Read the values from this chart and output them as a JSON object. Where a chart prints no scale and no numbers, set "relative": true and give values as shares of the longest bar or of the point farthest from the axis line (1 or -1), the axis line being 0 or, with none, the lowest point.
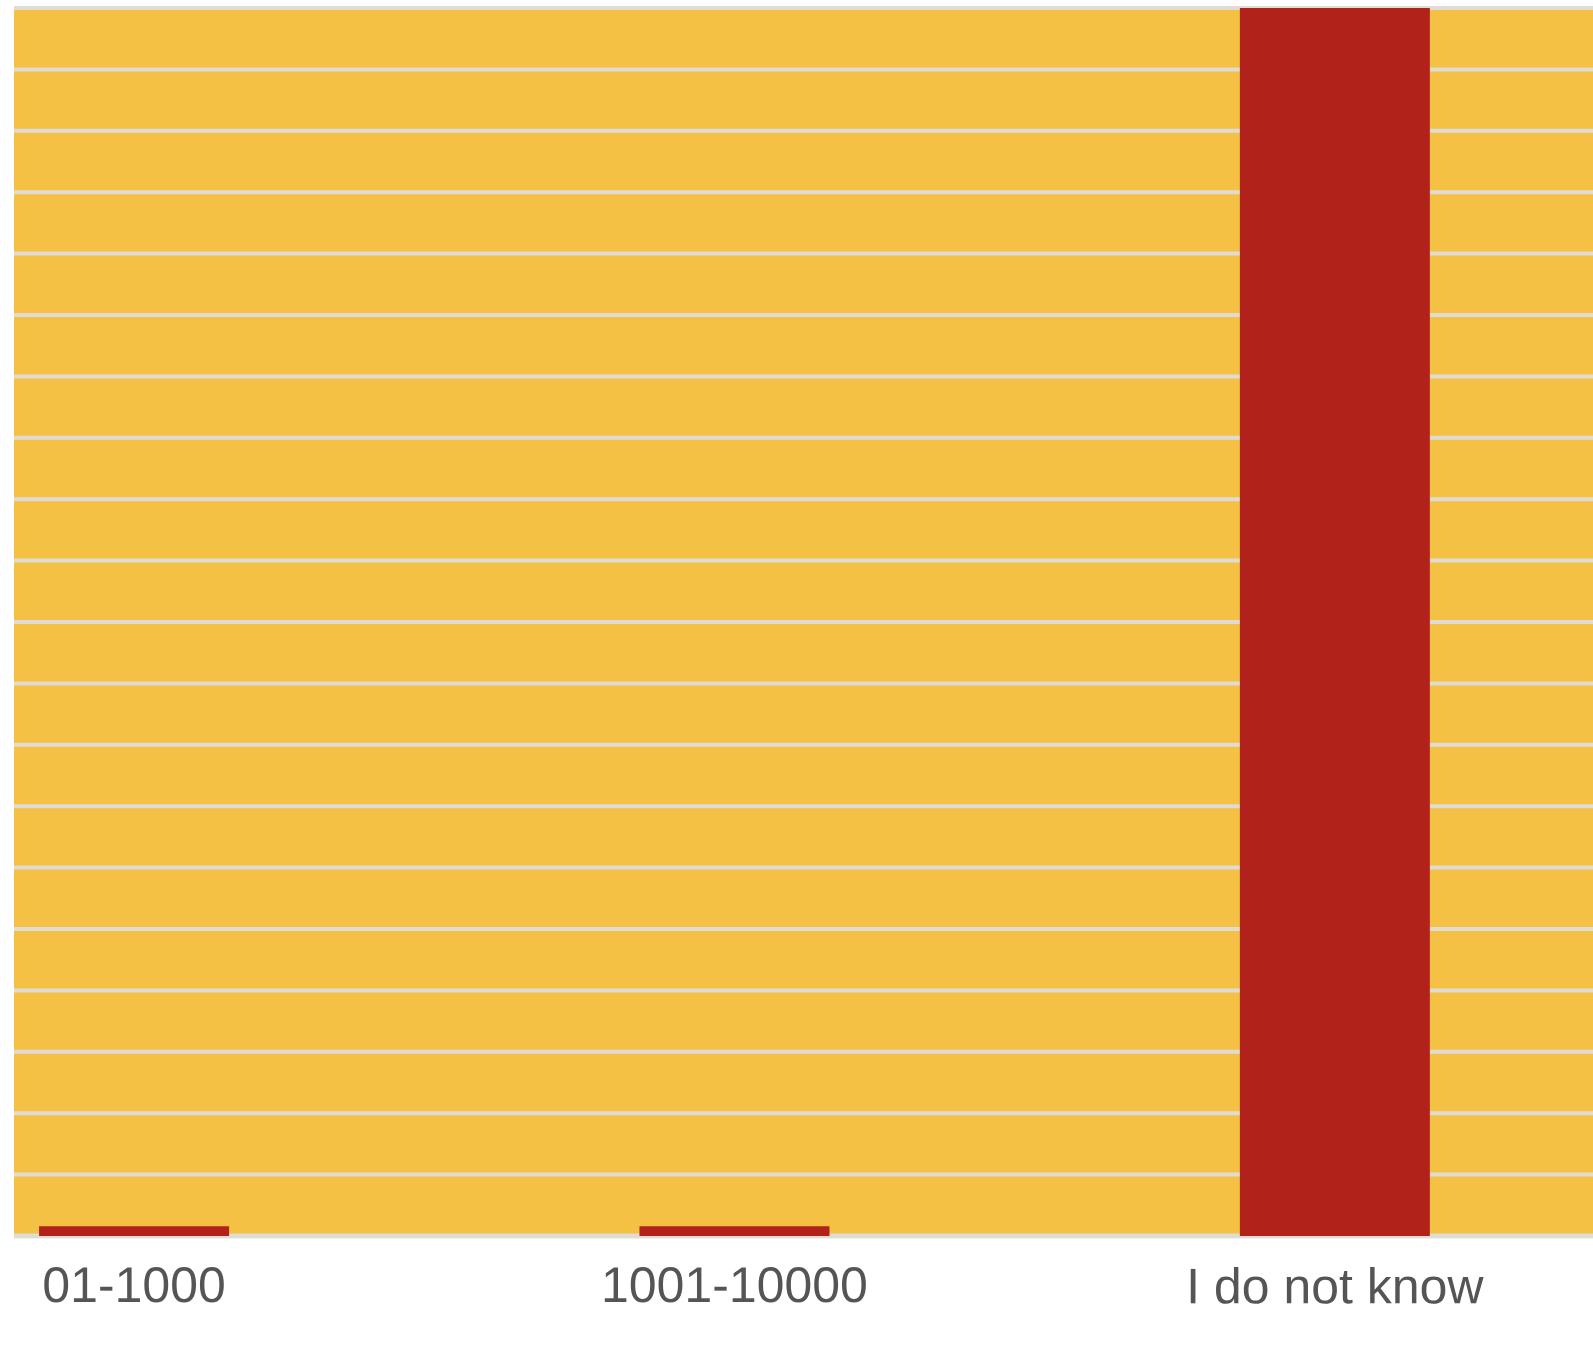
{
  "chart_data": {
    "type": "bar",
    "relative": true,
    "grid": "y",
    "categories": [
      "01-1000",
      "1001-10000",
      "I do not know"
    ],
    "values": [
      0.008,
      0.008,
      1
    ],
    "color": "#b0221a"
  }
}
